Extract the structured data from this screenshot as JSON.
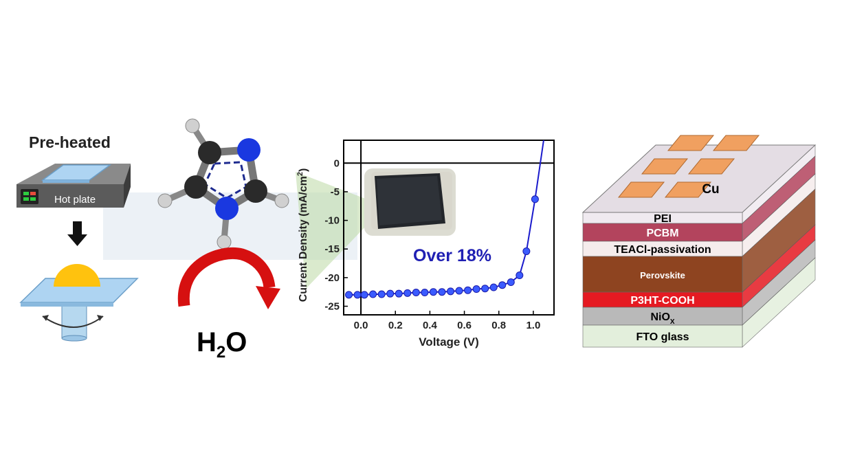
{
  "process": {
    "preheated_label": "Pre-heated",
    "hotplate_label": "Hot plate",
    "water_main": "H",
    "water_sub": "2",
    "water_tail": "O"
  },
  "colors": {
    "curve": "#1a1acc",
    "efficiency_text": "#1f1fb3",
    "arrow": "#e01010"
  },
  "chart_data": {
    "type": "line",
    "xlabel": "Voltage (V)",
    "ylabel_main": "Current Density (mA/cm",
    "ylabel_sup": "2",
    "ylabel_tail": ")",
    "xlim": [
      -0.1,
      1.12
    ],
    "ylim": [
      -26.5,
      4
    ],
    "x_ticks": [
      0.0,
      0.2,
      0.4,
      0.6,
      0.8,
      1.0
    ],
    "x_tick_labels": [
      "0.0",
      "0.2",
      "0.4",
      "0.6",
      "0.8",
      "1.0"
    ],
    "y_ticks": [
      0,
      -5,
      -10,
      -15,
      -20,
      -25
    ],
    "y_tick_labels": [
      "0",
      "-5",
      "-10",
      "-15",
      "-20",
      "-25"
    ],
    "zero_line": true,
    "annotation": "Over 18%",
    "series": [
      {
        "x": [
          -0.07,
          -0.02,
          0.02,
          0.07,
          0.12,
          0.17,
          0.22,
          0.27,
          0.32,
          0.37,
          0.42,
          0.47,
          0.52,
          0.57,
          0.62,
          0.67,
          0.72,
          0.77,
          0.82,
          0.87,
          0.92,
          0.96,
          1.01,
          1.06
        ],
        "y": [
          -23.0,
          -23.0,
          -23.0,
          -22.9,
          -22.9,
          -22.8,
          -22.8,
          -22.7,
          -22.6,
          -22.6,
          -22.5,
          -22.5,
          -22.4,
          -22.3,
          -22.2,
          -22.0,
          -21.9,
          -21.7,
          -21.3,
          -20.8,
          -19.6,
          -15.4,
          -6.3,
          4.0
        ]
      }
    ]
  },
  "device": {
    "top_electrode": "Cu",
    "layers": [
      {
        "name": "PEI",
        "sub": "",
        "color": "#f0eaf0",
        "text_color": "#000000"
      },
      {
        "name": "PCBM",
        "sub": "",
        "color": "#b3445d",
        "text_color": "#ffffff"
      },
      {
        "name": "TEACl-passivation",
        "sub": "",
        "color": "#f5ecec",
        "text_color": "#000000"
      },
      {
        "name": "Perovskite",
        "sub": "",
        "color": "#8e4420",
        "text_color": "#ffffff"
      },
      {
        "name": "P3HT-COOH",
        "sub": "",
        "color": "#e51a22",
        "text_color": "#ffffff"
      },
      {
        "name": "NiO",
        "sub": "X",
        "color": "#b9b9b9",
        "text_color": "#000000"
      },
      {
        "name": "FTO glass",
        "sub": "",
        "color": "#e3efdc",
        "text_color": "#000000"
      }
    ]
  }
}
